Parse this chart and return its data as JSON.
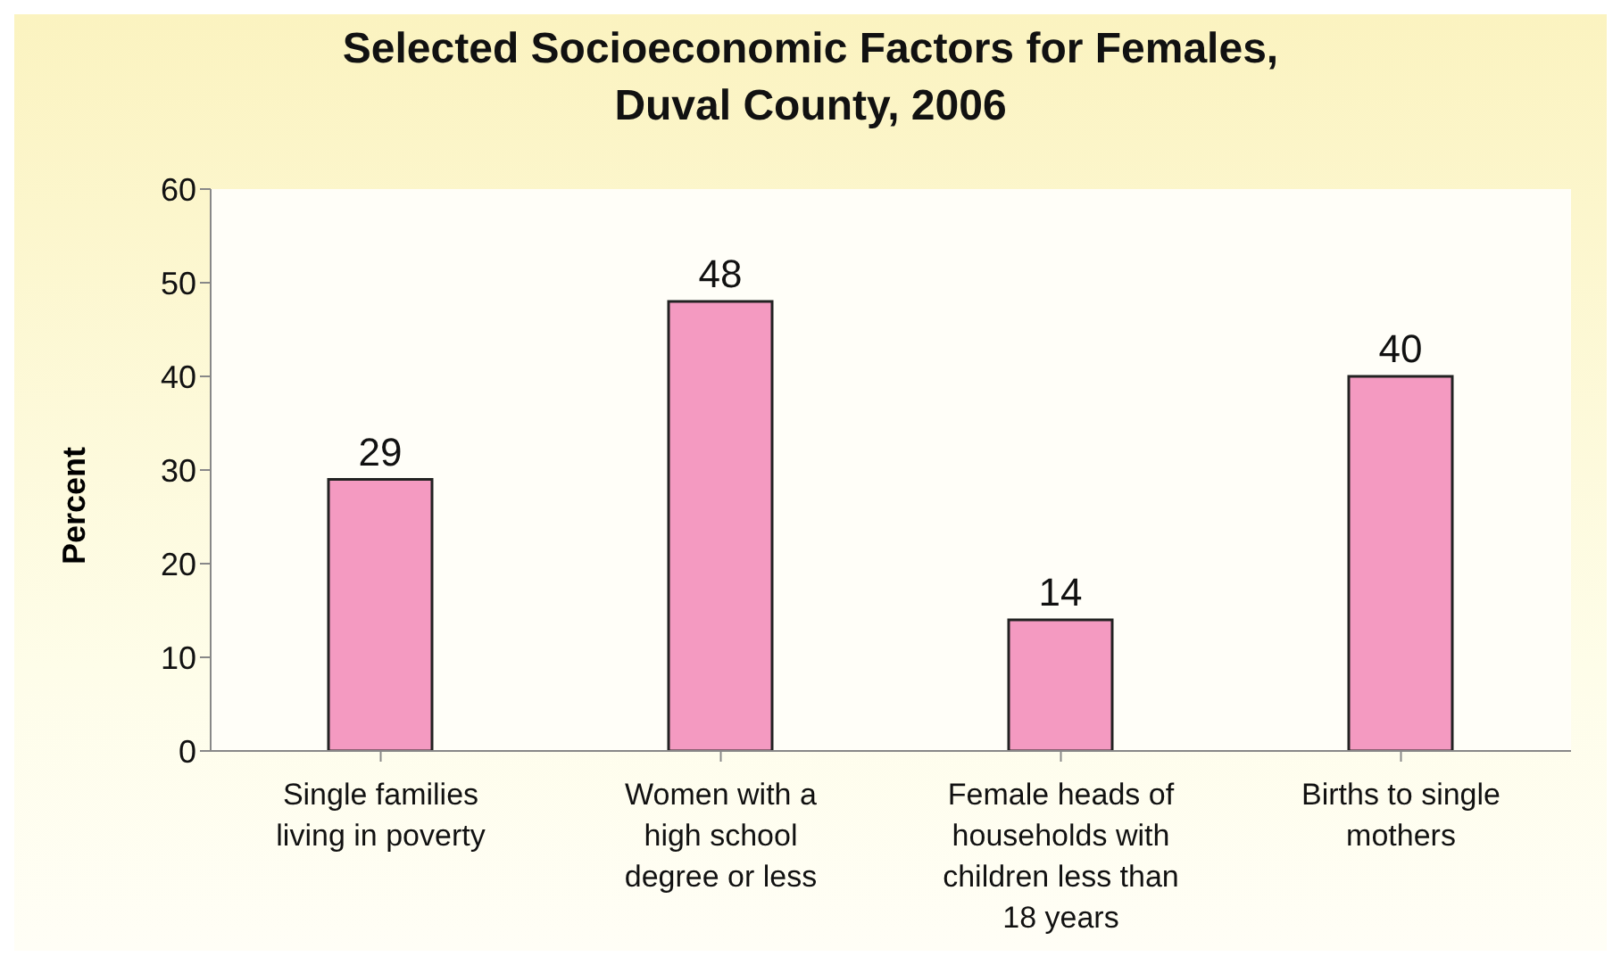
{
  "chart_data": {
    "type": "bar",
    "title": "Selected Socioeconomic Factors for Females,\nDuval County, 2006",
    "ylabel": "Percent",
    "categories": [
      "Single families living in poverty",
      "Women with a high school degree or less",
      "Female heads of households with children less than 18 years",
      "Births to single mothers"
    ],
    "values": [
      29,
      48,
      14,
      40
    ],
    "color": "#f49ac1",
    "ylim": [
      0,
      60
    ],
    "yticks": [
      0,
      10,
      20,
      30,
      40,
      50,
      60
    ],
    "grid": false,
    "data_labels": true
  }
}
